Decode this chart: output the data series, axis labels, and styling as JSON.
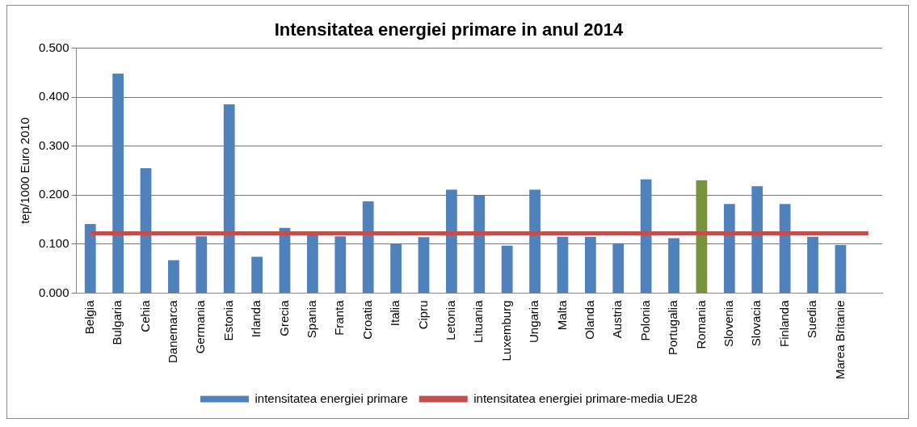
{
  "chart_data": {
    "type": "bar",
    "title": "Intensitatea energiei primare in anul 2014",
    "ylabel": "tep/1000 Euro 2010",
    "categories": [
      "Belgia",
      "Bulgaria",
      "Cehia",
      "Danemarca",
      "Germania",
      "Estonia",
      "Irlanda",
      "Grecia",
      "Spania",
      "Franta",
      "Croatia",
      "Italia",
      "Cipru",
      "Letonia",
      "Lituania",
      "Luxemburg",
      "Ungaria",
      "Malta",
      "Olanda",
      "Austria",
      "Polonia",
      "Portugalia",
      "Romania",
      "Slovenia",
      "Slovacia",
      "Finlanda",
      "Suedia",
      "Marea Britanie",
      null
    ],
    "series": [
      {
        "name": "intensitatea energiei primare",
        "color": "#4f81bd",
        "colors": [
          "#4f81bd",
          "#4f81bd",
          "#4f81bd",
          "#4f81bd",
          "#4f81bd",
          "#4f81bd",
          "#4f81bd",
          "#4f81bd",
          "#4f81bd",
          "#4f81bd",
          "#4f81bd",
          "#4f81bd",
          "#4f81bd",
          "#4f81bd",
          "#4f81bd",
          "#4f81bd",
          "#4f81bd",
          "#4f81bd",
          "#4f81bd",
          "#4f81bd",
          "#4f81bd",
          "#4f81bd",
          "#77933c",
          "#4f81bd",
          "#4f81bd",
          "#4f81bd",
          "#4f81bd",
          "#4f81bd",
          "#4f81bd"
        ],
        "values": [
          0.141,
          0.448,
          0.255,
          0.067,
          0.116,
          0.385,
          0.074,
          0.133,
          0.121,
          0.116,
          0.187,
          0.1,
          0.114,
          0.211,
          0.199,
          0.097,
          0.211,
          0.115,
          0.115,
          0.102,
          0.232,
          0.112,
          0.23,
          0.182,
          0.218,
          0.182,
          0.115,
          0.098,
          null
        ]
      },
      {
        "name": "intensitatea energiei primare-media UE28",
        "type": "line",
        "color": "#c0504d",
        "marker": "none",
        "values": [
          0.122,
          0.122,
          0.122,
          0.122,
          0.122,
          0.122,
          0.122,
          0.122,
          0.122,
          0.122,
          0.122,
          0.122,
          0.122,
          0.122,
          0.122,
          0.122,
          0.122,
          0.122,
          0.122,
          0.122,
          0.122,
          0.122,
          0.122,
          0.122,
          0.122,
          0.122,
          0.122,
          0.122,
          0.122
        ]
      }
    ],
    "ylim": [
      0,
      0.5
    ],
    "yticks": [
      {
        "value": 0,
        "label": "0.000"
      },
      {
        "value": 0.1,
        "label": "0.100"
      },
      {
        "value": 0.2,
        "label": "0.200"
      },
      {
        "value": 0.3,
        "label": "0.300"
      },
      {
        "value": 0.4,
        "label": "0.400"
      },
      {
        "value": 0.5,
        "label": "0.500"
      }
    ],
    "grid": "y",
    "legend": "bottom"
  }
}
